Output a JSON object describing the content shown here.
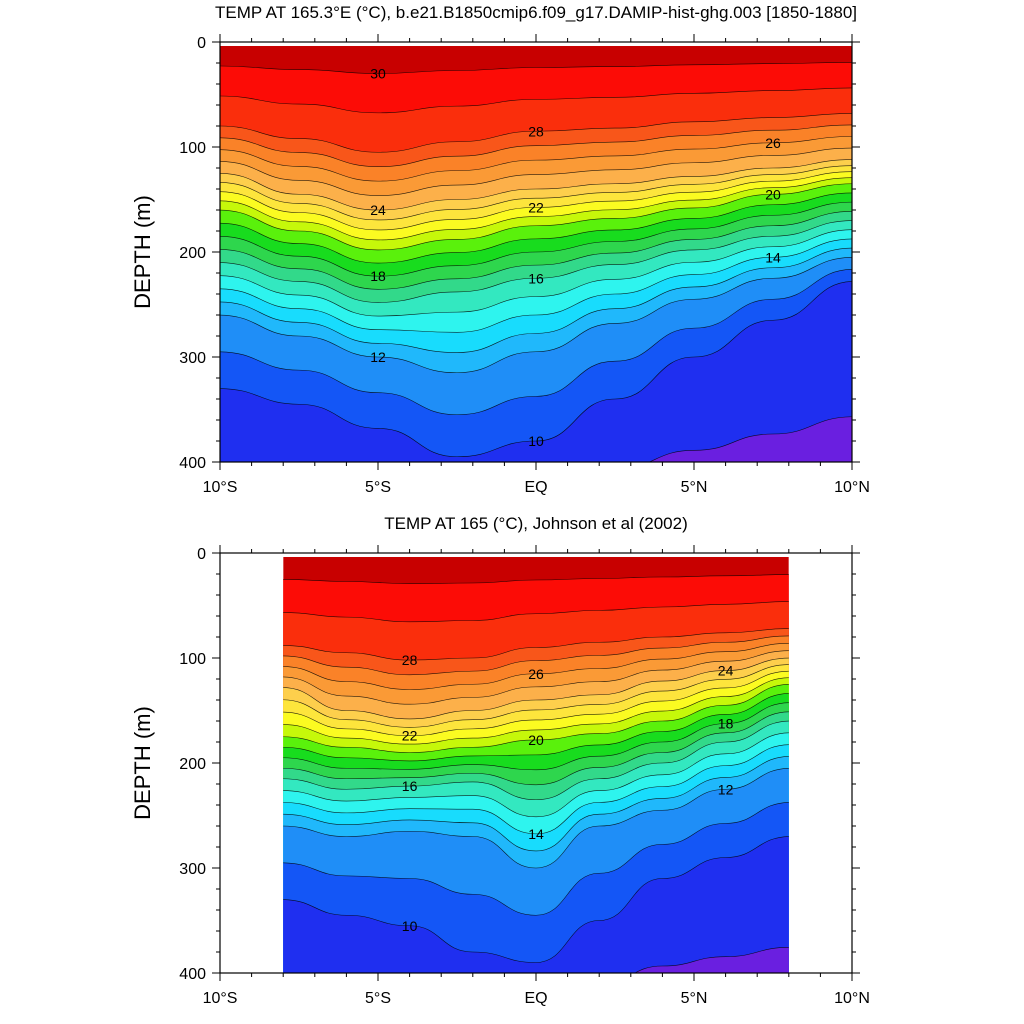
{
  "chart_data": [
    {
      "type": "contour",
      "title": "TEMP AT 165.3°E (°C), b.e21.B1850cmip6.f09_g17.DAMIP-hist-ghg.003 [1850-1880]",
      "xlabel": "",
      "ylabel": "DEPTH (m)",
      "xlim": [
        -10,
        10
      ],
      "ylim": [
        400,
        0
      ],
      "x_ticks": [
        "10°S",
        "5°S",
        "EQ",
        "5°N",
        "10°N"
      ],
      "y_ticks": [
        "0",
        "100",
        "200",
        "300",
        "400"
      ],
      "contour_interval": 1,
      "contour_labels": [
        30,
        28,
        26,
        24,
        22,
        20,
        18,
        16,
        14,
        12,
        10
      ],
      "data_extent_x": [
        -10,
        10
      ],
      "x": [
        -10,
        -7.5,
        -5,
        -2.5,
        0,
        2.5,
        5,
        7.5,
        10
      ],
      "isotherm_depths": {
        "28": [
          80,
          92,
          105,
          95,
          85,
          82,
          76,
          72,
          68
        ],
        "24": [
          125,
          145,
          160,
          150,
          140,
          135,
          128,
          120,
          112
        ],
        "20": [
          160,
          180,
          198,
          188,
          175,
          168,
          158,
          145,
          135
        ],
        "16": [
          210,
          228,
          248,
          238,
          225,
          212,
          198,
          185,
          170
        ],
        "12": [
          260,
          280,
          300,
          315,
          295,
          268,
          245,
          225,
          205
        ],
        "10": [
          330,
          345,
          368,
          395,
          380,
          340,
          300,
          265,
          228
        ]
      }
    },
    {
      "type": "contour",
      "title": "TEMP AT 165 (°C), Johnson et al (2002)",
      "xlabel": "",
      "ylabel": "DEPTH (m)",
      "xlim": [
        -10,
        10
      ],
      "ylim": [
        400,
        0
      ],
      "x_ticks": [
        "10°S",
        "5°S",
        "EQ",
        "5°N",
        "10°N"
      ],
      "y_ticks": [
        "0",
        "100",
        "200",
        "300",
        "400"
      ],
      "contour_interval": 1,
      "contour_labels": [
        28,
        26,
        24,
        22,
        20,
        18,
        16,
        14,
        12,
        10
      ],
      "data_extent_x": [
        -8,
        8
      ],
      "x": [
        -8,
        -6,
        -4,
        -2,
        0,
        2,
        4,
        6,
        8
      ],
      "isotherm_depths": {
        "28": [
          88,
          95,
          102,
          100,
          90,
          85,
          80,
          76,
          72
        ],
        "24": [
          128,
          150,
          158,
          150,
          140,
          135,
          122,
          112,
          100
        ],
        "20": [
          175,
          185,
          190,
          185,
          178,
          172,
          160,
          145,
          125
        ],
        "16": [
          215,
          225,
          222,
          218,
          235,
          215,
          200,
          180,
          160
        ],
        "12": [
          260,
          270,
          265,
          270,
          300,
          260,
          245,
          225,
          205
        ],
        "10": [
          330,
          345,
          355,
          380,
          390,
          350,
          310,
          290,
          270
        ]
      }
    }
  ]
}
